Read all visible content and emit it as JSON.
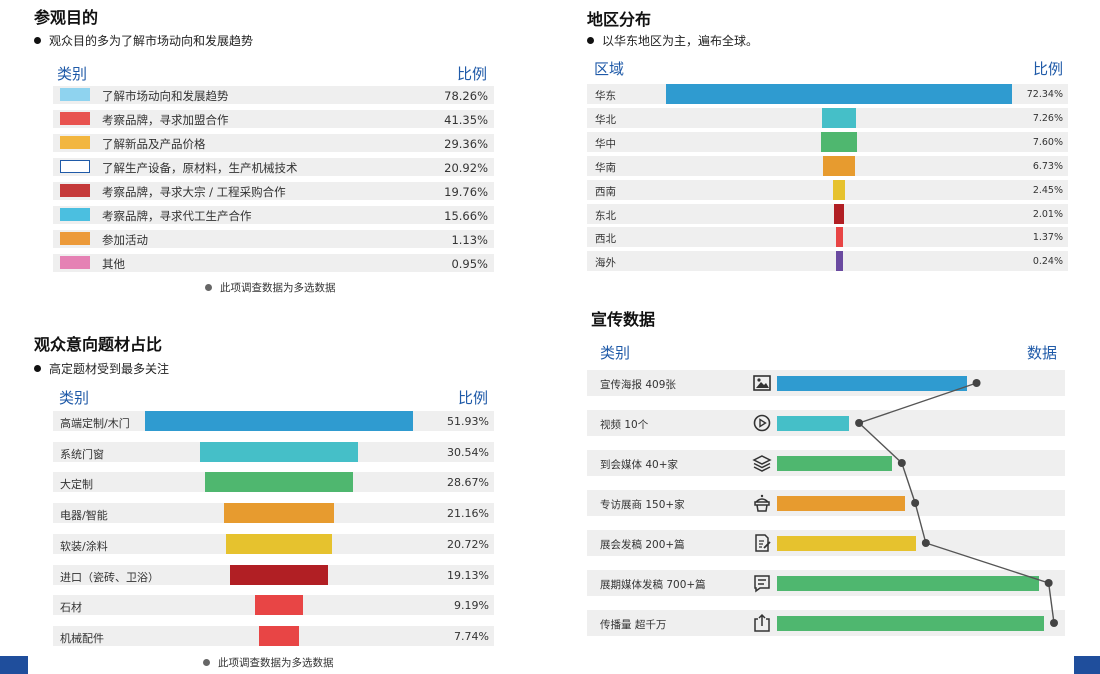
{
  "chart_data": [
    {
      "type": "table",
      "title": "参观目的",
      "subtitle": "观众目的多为了解市场动向和发展趋势",
      "col_category": "类别",
      "col_value": "比例",
      "rows": [
        {
          "label": "了解市场动向和发展趋势",
          "value": "78.26%",
          "color": "#8fd3ef"
        },
        {
          "label": "考察品牌，寻求加盟合作",
          "value": "41.35%",
          "color": "#e8534f"
        },
        {
          "label": "了解新品及产品价格",
          "value": "29.36%",
          "color": "#f2b640"
        },
        {
          "label": "了解生产设备，原材料，生产机械技术",
          "value": "20.92%",
          "color": "#ffffff",
          "border": "#1f5aa8"
        },
        {
          "label": "考察品牌，寻求大宗 / 工程采购合作",
          "value": "19.76%",
          "color": "#c53a3a"
        },
        {
          "label": "考察品牌，寻求代工生产合作",
          "value": "15.66%",
          "color": "#4bbfe0"
        },
        {
          "label": "参加活动",
          "value": "1.13%",
          "color": "#ec9a3a"
        },
        {
          "label": "其他",
          "value": "0.95%",
          "color": "#e581b4"
        }
      ],
      "note": "此项调查数据为多选数据"
    },
    {
      "type": "bar",
      "title": "观众意向题材占比",
      "subtitle": "高定题材受到最多关注",
      "col_category": "类别",
      "col_value": "比例",
      "categories": [
        "高端定制/木门",
        "系统门窗",
        "大定制",
        "电器/智能",
        "软装/涂料",
        "进口（瓷砖、卫浴）",
        "石材",
        "机械配件"
      ],
      "values": [
        51.93,
        30.54,
        28.67,
        21.16,
        20.72,
        19.13,
        9.19,
        7.74
      ],
      "labels": [
        "51.93%",
        "30.54%",
        "28.67%",
        "21.16%",
        "20.72%",
        "19.13%",
        "9.19%",
        "7.74%"
      ],
      "colors": [
        "#2f9bd0",
        "#45bfc8",
        "#4fb76f",
        "#e79b2f",
        "#e6c22e",
        "#b11f24",
        "#e84545",
        "#e84545"
      ],
      "note": "此项调查数据为多选数据"
    },
    {
      "type": "bar",
      "title": "地区分布",
      "subtitle": "以华东地区为主，遍布全球。",
      "col_category": "区域",
      "col_value": "比例",
      "categories": [
        "华东",
        "华北",
        "华中",
        "华南",
        "西南",
        "东北",
        "西北",
        "海外"
      ],
      "values": [
        72.34,
        7.26,
        7.6,
        6.73,
        2.45,
        2.01,
        1.37,
        0.24
      ],
      "labels": [
        "72.34%",
        "7.26%",
        "7.60%",
        "6.73%",
        "2.45%",
        "2.01%",
        "1.37%",
        "0.24%"
      ],
      "colors": [
        "#2f9bd0",
        "#45bfc8",
        "#4fb76f",
        "#e79b2f",
        "#e6c22e",
        "#b11f24",
        "#e84545",
        "#6a4aa0"
      ]
    },
    {
      "type": "bar",
      "title": "宣传数据",
      "col_category": "类别",
      "col_value": "数据",
      "categories": [
        "宣传海报 409张",
        "视频 10个",
        "到会媒体 40+家",
        "专访展商 150+家",
        "展会发稿 200+篇",
        "展期媒体发稿 700+篇",
        "传播量 超千万"
      ],
      "icons": [
        "image-icon",
        "play-icon",
        "layers-icon",
        "booth-icon",
        "doc-edit-icon",
        "message-icon",
        "share-icon"
      ],
      "levels": [
        0.71,
        0.27,
        0.43,
        0.48,
        0.52,
        0.98,
        1.0
      ],
      "colors": [
        "#2f9bd0",
        "#45bfc8",
        "#4fb76f",
        "#e79b2f",
        "#e6c22e",
        "#4fb76f",
        "#4fb76f"
      ]
    }
  ]
}
